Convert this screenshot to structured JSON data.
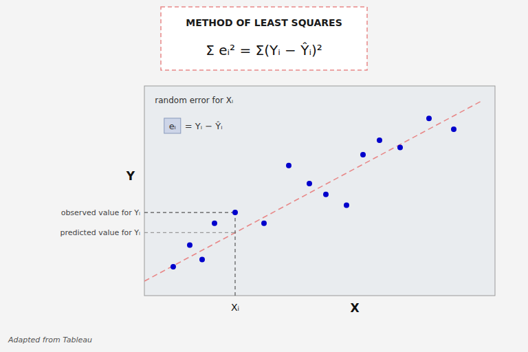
{
  "chart_data": {
    "type": "scatter",
    "title": "METHOD OF LEAST SQUARES",
    "formula": "Σ eᵢ² = Σ(Yᵢ − Ŷᵢ)²",
    "x": [
      1.0,
      1.4,
      1.7,
      2.0,
      2.5,
      3.2,
      3.8,
      4.3,
      4.7,
      5.2,
      5.6,
      6.0,
      6.5,
      7.2,
      7.8
    ],
    "values": [
      2.0,
      2.6,
      2.2,
      3.2,
      3.5,
      3.2,
      4.8,
      4.3,
      4.0,
      3.7,
      5.1,
      5.5,
      5.3,
      6.1,
      5.8
    ],
    "color": "#0000cc",
    "xlim": [
      0.3,
      8.8
    ],
    "ylim": [
      1.2,
      7.0
    ],
    "tick_labels": false,
    "grid": false,
    "xlabel": "X",
    "ylabel": "Y",
    "trend_line": {
      "x": [
        0.3,
        8.5
      ],
      "y": [
        1.6,
        6.6
      ],
      "color": "#e88888"
    },
    "xi": {
      "x": 2.5,
      "label": "Xᵢ"
    },
    "observed": {
      "y": 3.5,
      "label": "observed value for Yᵢ"
    },
    "predicted": {
      "y": 2.941463414634146,
      "label": "predicted value for Yᵢ"
    },
    "annotation": "random error for Xᵢ",
    "error_label": [
      "eᵢ",
      "= Yᵢ − Ŷᵢ"
    ],
    "footer": "Adapted from Tableau"
  }
}
